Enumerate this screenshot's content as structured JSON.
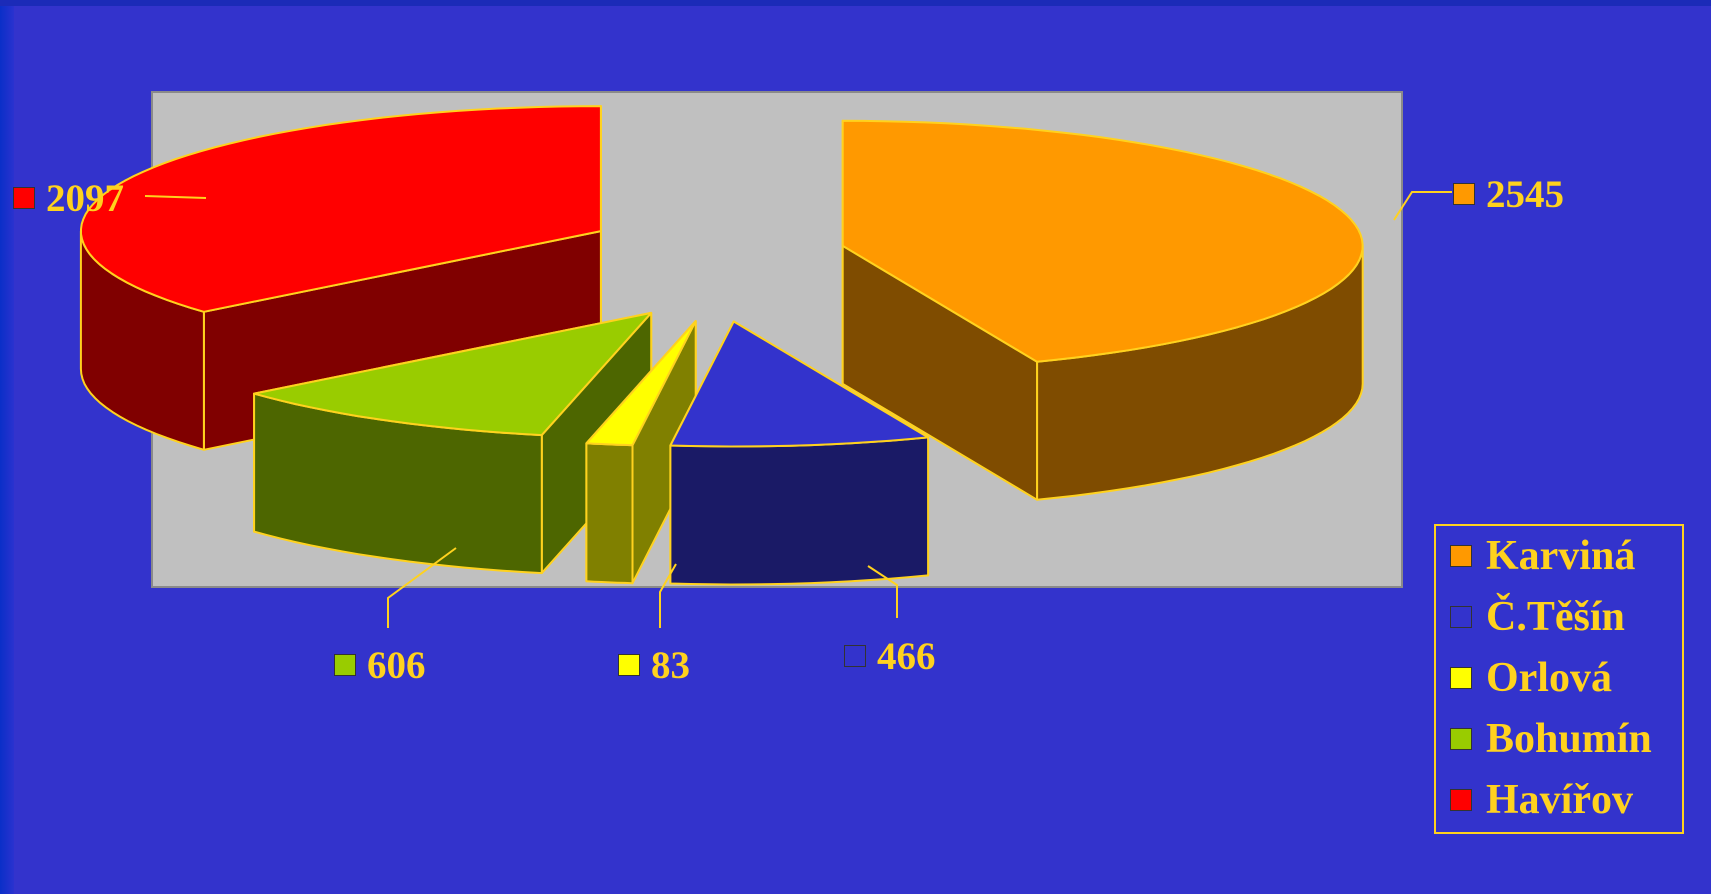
{
  "chart_data": {
    "type": "pie",
    "title": "",
    "categories": [
      "Karviná",
      "Č.Těšín",
      "Orlová",
      "Bohumín",
      "Havířov"
    ],
    "values": [
      2545,
      466,
      83,
      606,
      2097
    ],
    "colors": [
      "#ff9900",
      "#3333cc",
      "#ffff00",
      "#99cc00",
      "#ff0000"
    ],
    "side_colors": [
      "#7f4c00",
      "#1a1a66",
      "#808000",
      "#4d6600",
      "#800000"
    ],
    "edge_color": "#ffd21e",
    "plot_background": "#c0c0c0",
    "three_d": true,
    "exploded": true,
    "legend_position": "right"
  },
  "legend": {
    "items": [
      {
        "label": "Karviná",
        "color": "#ff9900"
      },
      {
        "label": "Č.Těšín",
        "color": "#3333cc"
      },
      {
        "label": "Orlová",
        "color": "#ffff00"
      },
      {
        "label": "Bohumín",
        "color": "#99cc00"
      },
      {
        "label": "Havířov",
        "color": "#ff0000"
      }
    ]
  },
  "data_labels": [
    {
      "value": "2545",
      "color": "#ff9900"
    },
    {
      "value": "466",
      "color": "#3333cc"
    },
    {
      "value": "83",
      "color": "#ffff00"
    },
    {
      "value": "606",
      "color": "#99cc00"
    },
    {
      "value": "2097",
      "color": "#ff0000"
    }
  ]
}
